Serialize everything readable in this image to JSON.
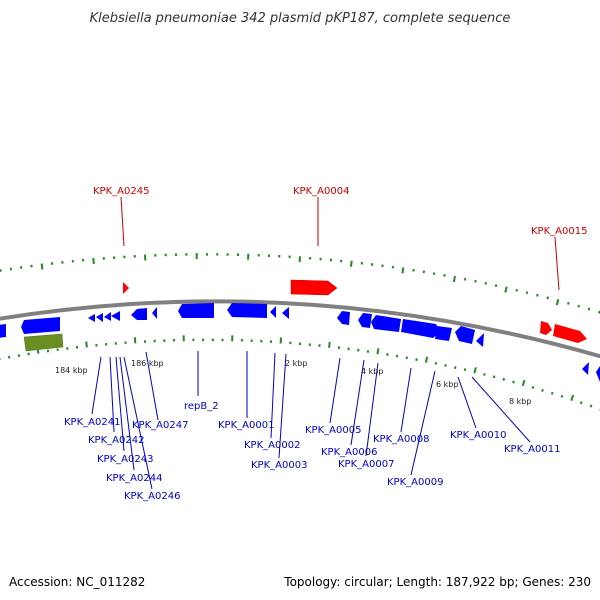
{
  "title": "Klebsiella pneumoniae 342 plasmid pKP187, complete sequence",
  "footer": {
    "accession": "Accession: NC_011282",
    "summary": "Topology: circular; Length: 187,922 bp; Genes: 230"
  },
  "colors": {
    "forward_gene": "#ff0000",
    "reverse_gene": "#0000ff",
    "rna_feature": "#6b8e23",
    "tick": "#228b22",
    "backbone": "#808080",
    "label_forward": "#cc0000",
    "label_reverse": "#0000cc"
  },
  "scale_labels": [
    "184 kbp",
    "186 kbp",
    "2 kbp",
    "4 kbp",
    "6 kbp",
    "8 kbp"
  ],
  "forward_labels": [
    "KPK_A0245",
    "KPK_A0004",
    "KPK_A0015"
  ],
  "reverse_labels": [
    "KPK_A0241",
    "KPK_A0242",
    "KPK_A0243",
    "KPK_A0244",
    "KPK_A0246",
    "KPK_A0247",
    "repB_2",
    "KPK_A0001",
    "KPK_A0002",
    "KPK_A0003",
    "KPK_A0005",
    "KPK_A0006",
    "KPK_A0007",
    "KPK_A0008",
    "KPK_A0009",
    "KPK_A0010",
    "KPK_A0011"
  ]
}
